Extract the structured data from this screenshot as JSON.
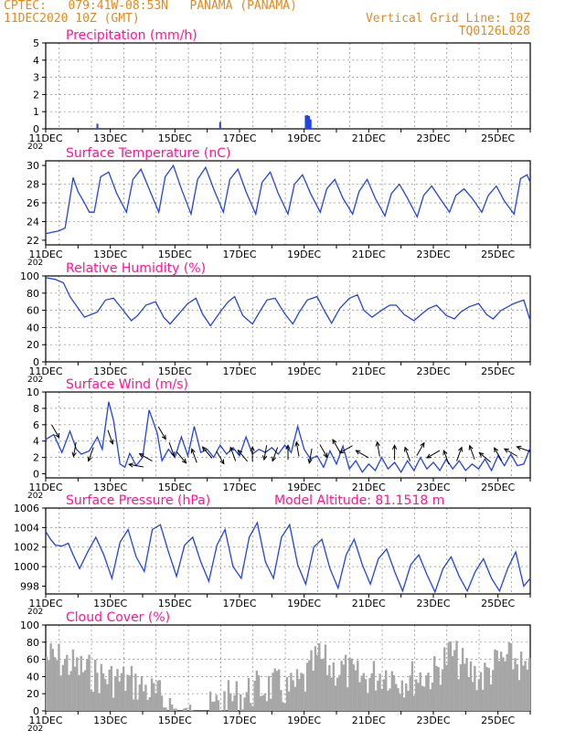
{
  "header": {
    "station": "CPTEC:   079:41W-08:53N   PANAMA (PANAMA)",
    "run": "11DEC2020 10Z (GMT)",
    "grid": "Vertical Grid Line: 10Z",
    "code": "TQ0126L028"
  },
  "colors": {
    "accent": "#e08a1e",
    "title": "#ff1493",
    "line": "#2244dd",
    "bars": "#a6a6a6",
    "grid": "#888888"
  },
  "x_ticks": [
    "11DEC",
    "13DEC",
    "15DEC",
    "17DEC",
    "19DEC",
    "21DEC",
    "23DEC",
    "25DEC"
  ],
  "year_fragment": "202",
  "chart_data": [
    {
      "id": "precip",
      "type": "bar",
      "title": "Precipitation (mm/h)",
      "ylim": [
        0,
        5
      ],
      "yticks": [
        0,
        1,
        2,
        3,
        4,
        5
      ],
      "grid": true,
      "x_unit": "days since 11DEC 00Z",
      "x": [
        1.6,
        5.4,
        8.05,
        8.1,
        8.15,
        8.2
      ],
      "values": [
        0.3,
        0.4,
        0.78,
        0.8,
        0.75,
        0.55
      ]
    },
    {
      "id": "temp",
      "type": "line",
      "title": "Surface Temperature (nC)",
      "ylim": [
        21.5,
        30.5
      ],
      "yticks": [
        22,
        24,
        26,
        28,
        30
      ],
      "grid": true,
      "x": [
        0,
        0.4,
        0.6,
        0.75,
        0.85,
        1.0,
        1.2,
        1.35,
        1.5,
        1.7,
        1.95,
        2.2,
        2.5,
        2.7,
        2.95,
        3.2,
        3.5,
        3.7,
        3.95,
        4.2,
        4.5,
        4.7,
        4.95,
        5.2,
        5.5,
        5.7,
        5.95,
        6.2,
        6.5,
        6.7,
        6.95,
        7.2,
        7.5,
        7.7,
        7.95,
        8.2,
        8.5,
        8.7,
        8.95,
        9.2,
        9.5,
        9.7,
        9.95,
        10.2,
        10.5,
        10.7,
        10.95,
        11.2,
        11.5,
        11.7,
        11.95,
        12.2,
        12.5,
        12.7,
        12.95,
        13.2,
        13.5,
        13.7,
        13.95,
        14.2,
        14.5,
        14.7,
        14.9,
        15.0
      ],
      "values": [
        22.7,
        23.0,
        23.3,
        26.5,
        28.7,
        27.2,
        26.0,
        25.0,
        25.0,
        28.8,
        29.3,
        27.0,
        25.0,
        28.5,
        29.6,
        27.5,
        25.0,
        28.8,
        30.0,
        27.5,
        24.8,
        28.5,
        29.8,
        27.5,
        25.0,
        28.5,
        29.6,
        27.2,
        24.8,
        28.2,
        29.3,
        27.0,
        24.8,
        28.0,
        29.0,
        27.0,
        25.0,
        27.5,
        28.5,
        26.5,
        24.8,
        27.2,
        28.5,
        26.5,
        24.6,
        27.0,
        28.0,
        26.5,
        24.5,
        26.8,
        27.8,
        26.5,
        25.0,
        26.8,
        27.5,
        26.5,
        25.0,
        26.8,
        27.8,
        26.2,
        24.8,
        28.6,
        29.0,
        28.2
      ]
    },
    {
      "id": "rh",
      "type": "line",
      "title": "Relative Humidity (%)",
      "ylim": [
        0,
        100
      ],
      "yticks": [
        0,
        20,
        40,
        60,
        80,
        100
      ],
      "grid": true,
      "x": [
        0,
        0.3,
        0.55,
        0.75,
        0.9,
        1.2,
        1.6,
        1.85,
        2.1,
        2.4,
        2.65,
        2.85,
        3.1,
        3.4,
        3.65,
        3.85,
        4.1,
        4.4,
        4.65,
        4.85,
        5.1,
        5.4,
        5.65,
        5.85,
        6.1,
        6.4,
        6.65,
        6.85,
        7.1,
        7.4,
        7.65,
        7.85,
        8.1,
        8.4,
        8.65,
        8.85,
        9.1,
        9.4,
        9.65,
        9.85,
        10.1,
        10.4,
        10.65,
        10.85,
        11.1,
        11.4,
        11.65,
        11.85,
        12.1,
        12.4,
        12.65,
        12.85,
        13.1,
        13.4,
        13.65,
        13.85,
        14.1,
        14.5,
        14.8,
        15.0
      ],
      "values": [
        98,
        96,
        92,
        76,
        68,
        52,
        58,
        72,
        74,
        60,
        48,
        54,
        66,
        70,
        52,
        44,
        55,
        68,
        74,
        56,
        42,
        58,
        70,
        76,
        54,
        44,
        60,
        72,
        74,
        56,
        44,
        58,
        72,
        76,
        58,
        45,
        62,
        74,
        78,
        60,
        52,
        60,
        66,
        66,
        55,
        48,
        56,
        62,
        66,
        54,
        50,
        58,
        64,
        68,
        55,
        50,
        60,
        68,
        72,
        48
      ]
    },
    {
      "id": "wind",
      "type": "line",
      "title": "Surface Wind (m/s)",
      "ylim": [
        -0.5,
        10
      ],
      "yticks": [
        0,
        2,
        4,
        6,
        8,
        10
      ],
      "grid": true,
      "x": [
        0,
        0.25,
        0.5,
        0.75,
        0.95,
        1.1,
        1.35,
        1.6,
        1.75,
        1.95,
        2.1,
        2.3,
        2.45,
        2.6,
        2.8,
        3.0,
        3.2,
        3.45,
        3.6,
        3.8,
        4.0,
        4.2,
        4.4,
        4.6,
        4.8,
        5.0,
        5.2,
        5.4,
        5.6,
        5.8,
        6.0,
        6.2,
        6.4,
        6.6,
        6.8,
        7.0,
        7.2,
        7.4,
        7.6,
        7.8,
        8.0,
        8.2,
        8.4,
        8.6,
        8.8,
        9.0,
        9.2,
        9.4,
        9.6,
        9.8,
        10.0,
        10.2,
        10.4,
        10.6,
        10.8,
        11.0,
        11.2,
        11.4,
        11.6,
        11.8,
        12.0,
        12.2,
        12.4,
        12.6,
        12.8,
        13.0,
        13.2,
        13.4,
        13.6,
        13.8,
        14.0,
        14.2,
        14.4,
        14.6,
        14.8,
        15.0
      ],
      "values": [
        4.2,
        4.8,
        2.6,
        5.2,
        3.0,
        2.4,
        2.8,
        4.5,
        3.0,
        8.8,
        6.5,
        1.2,
        0.8,
        2.5,
        1.0,
        2.0,
        7.8,
        5.0,
        1.6,
        3.0,
        2.0,
        4.5,
        2.2,
        5.8,
        2.6,
        3.0,
        2.0,
        3.5,
        2.4,
        3.2,
        2.2,
        4.5,
        2.4,
        3.0,
        2.6,
        3.2,
        2.4,
        3.5,
        2.6,
        5.8,
        3.0,
        1.8,
        2.2,
        0.8,
        2.8,
        1.2,
        3.4,
        0.6,
        1.6,
        0.2,
        1.2,
        0.4,
        2.0,
        0.6,
        1.4,
        0.2,
        1.6,
        0.4,
        2.0,
        0.6,
        1.4,
        0.4,
        1.8,
        0.6,
        1.6,
        0.4,
        1.2,
        0.6,
        1.8,
        0.4,
        2.2,
        1.0,
        2.4,
        1.0,
        1.2,
        3.2
      ],
      "arrows": {
        "x": [
          0.3,
          0.9,
          1.4,
          2.0,
          2.8,
          3.1,
          3.6,
          3.9,
          4.2,
          4.6,
          5.0,
          5.4,
          5.8,
          6.1,
          6.4,
          6.8,
          7.1,
          7.5,
          7.8,
          8.2,
          8.6,
          9.0,
          9.3,
          9.8,
          10.3,
          10.8,
          11.2,
          11.6,
          12.0,
          12.4,
          12.8,
          13.2,
          13.6,
          14.0,
          14.4,
          14.8
        ],
        "speed": [
          5.2,
          3.0,
          2.4,
          4.5,
          1.0,
          2.0,
          5.0,
          3.0,
          2.0,
          2.2,
          2.6,
          2.0,
          2.4,
          2.2,
          2.4,
          2.6,
          2.4,
          2.6,
          3.0,
          2.2,
          2.8,
          3.4,
          3.0,
          2.4,
          3.0,
          2.6,
          2.4,
          3.0,
          2.4,
          2.0,
          2.4,
          2.6,
          2.0,
          2.4,
          2.6,
          3.0
        ],
        "dir_deg": [
          30,
          350,
          340,
          20,
          260,
          240,
          30,
          20,
          40,
          200,
          220,
          30,
          200,
          220,
          180,
          350,
          340,
          180,
          190,
          350,
          30,
          210,
          300,
          240,
          190,
          180,
          200,
          150,
          300,
          200,
          160,
          200,
          230,
          210,
          240,
          250
        ]
      }
    },
    {
      "id": "press",
      "type": "line",
      "title": "Surface Pressure (hPa)",
      "extra_label": "Model Altitude: 81.1518 m",
      "ylim": [
        997.2,
        1006
      ],
      "yticks": [
        998,
        1000,
        1002,
        1004,
        1006
      ],
      "grid": true,
      "x": [
        0,
        0.15,
        0.3,
        0.5,
        0.7,
        0.85,
        1.05,
        1.3,
        1.55,
        1.8,
        2.05,
        2.3,
        2.55,
        2.8,
        3.05,
        3.3,
        3.55,
        3.8,
        4.05,
        4.3,
        4.55,
        4.8,
        5.05,
        5.3,
        5.55,
        5.8,
        6.05,
        6.3,
        6.55,
        6.8,
        7.05,
        7.3,
        7.55,
        7.8,
        8.05,
        8.3,
        8.55,
        8.8,
        9.05,
        9.3,
        9.55,
        9.8,
        10.05,
        10.3,
        10.55,
        10.8,
        11.05,
        11.3,
        11.55,
        11.8,
        12.05,
        12.3,
        12.55,
        12.8,
        13.05,
        13.3,
        13.55,
        13.8,
        14.05,
        14.3,
        14.55,
        14.8,
        15.0
      ],
      "values": [
        1003.6,
        1002.8,
        1002.2,
        1002.1,
        1002.4,
        1001.2,
        999.8,
        1001.5,
        1003.0,
        1001.2,
        998.8,
        1002.5,
        1003.8,
        1001.0,
        999.5,
        1003.8,
        1004.3,
        1001.5,
        999.0,
        1002.2,
        1003.0,
        1000.5,
        998.5,
        1002.2,
        1003.8,
        1000.0,
        998.8,
        1003.0,
        1004.5,
        1000.5,
        998.8,
        1003.0,
        1004.3,
        1000.2,
        998.2,
        1002.0,
        1002.8,
        999.8,
        997.8,
        1001.2,
        1002.8,
        1000.2,
        998.2,
        1000.8,
        1001.8,
        999.5,
        997.5,
        1000.2,
        1001.2,
        999.2,
        997.4,
        999.8,
        1001.0,
        999.0,
        997.5,
        999.5,
        1000.8,
        998.8,
        997.5,
        999.8,
        1001.5,
        998.0,
        998.8
      ]
    },
    {
      "id": "cloud",
      "type": "bar",
      "title": "Cloud Cover (%)",
      "ylim": [
        0,
        100
      ],
      "yticks": [
        0,
        20,
        40,
        60,
        80,
        100
      ],
      "grid": true,
      "x_step": 0.0625,
      "envelope_x": [
        0,
        0.5,
        1,
        1.5,
        2,
        2.5,
        3,
        3.5,
        3.8,
        4.2,
        4.6,
        5.0,
        5.5,
        6.0,
        6.5,
        7.0,
        7.5,
        8.0,
        8.4,
        8.8,
        9.2,
        9.6,
        10.0,
        10.5,
        11.0,
        11.5,
        12.0,
        12.5,
        13.0,
        13.5,
        14.0,
        14.5,
        15.0
      ],
      "envelope_y": [
        85,
        80,
        72,
        65,
        60,
        58,
        50,
        38,
        30,
        15,
        12,
        22,
        35,
        40,
        48,
        52,
        45,
        58,
        85,
        72,
        70,
        60,
        62,
        68,
        60,
        62,
        66,
        90,
        70,
        62,
        80,
        82,
        60
      ]
    }
  ]
}
